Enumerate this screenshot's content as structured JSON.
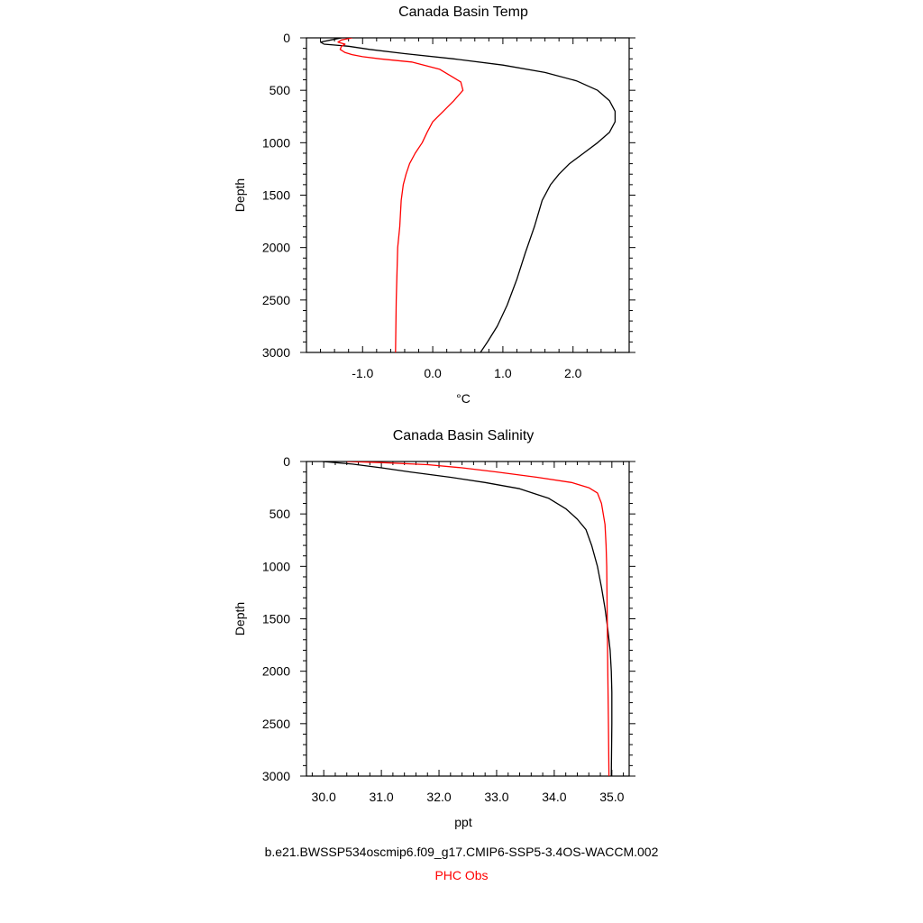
{
  "colors": {
    "model": "#000000",
    "obs": "#ff0000",
    "axis": "#000000"
  },
  "chart_data": [
    {
      "type": "line",
      "title": "Canada Basin Temp",
      "xlabel": "°C",
      "ylabel": "Depth",
      "xlim": [
        -1.8,
        2.8
      ],
      "ylim": [
        3000,
        0
      ],
      "y_inverted": true,
      "xticks": [
        -1.0,
        0.0,
        1.0,
        2.0
      ],
      "xtick_labels": [
        "-1.0",
        "0.0",
        "1.0",
        "2.0"
      ],
      "yticks": [
        0,
        500,
        1000,
        1500,
        2000,
        2500,
        3000
      ],
      "ytick_labels": [
        "0",
        "500",
        "1000",
        "1500",
        "2000",
        "2500",
        "3000"
      ],
      "series": [
        {
          "color": "#000000",
          "points": [
            [
              -1.3,
              0
            ],
            [
              -1.45,
              20
            ],
            [
              -1.6,
              40
            ],
            [
              -1.55,
              60
            ],
            [
              -1.2,
              80
            ],
            [
              -0.9,
              110
            ],
            [
              -0.4,
              150
            ],
            [
              0.3,
              200
            ],
            [
              1.0,
              260
            ],
            [
              1.6,
              330
            ],
            [
              2.05,
              410
            ],
            [
              2.35,
              500
            ],
            [
              2.52,
              600
            ],
            [
              2.6,
              700
            ],
            [
              2.6,
              800
            ],
            [
              2.52,
              900
            ],
            [
              2.35,
              1000
            ],
            [
              2.15,
              1100
            ],
            [
              1.95,
              1200
            ],
            [
              1.8,
              1300
            ],
            [
              1.68,
              1400
            ],
            [
              1.56,
              1550
            ],
            [
              1.45,
              1800
            ],
            [
              1.32,
              2050
            ],
            [
              1.2,
              2300
            ],
            [
              1.06,
              2550
            ],
            [
              0.92,
              2750
            ],
            [
              0.78,
              2900
            ],
            [
              0.68,
              3000
            ]
          ]
        },
        {
          "color": "#ff0000",
          "points": [
            [
              -1.15,
              0
            ],
            [
              -1.3,
              20
            ],
            [
              -1.35,
              40
            ],
            [
              -1.25,
              60
            ],
            [
              -1.3,
              80
            ],
            [
              -1.32,
              110
            ],
            [
              -1.25,
              140
            ],
            [
              -1.15,
              160
            ],
            [
              -1.0,
              180
            ],
            [
              -0.75,
              200
            ],
            [
              -0.3,
              230
            ],
            [
              0.1,
              300
            ],
            [
              0.3,
              380
            ],
            [
              0.4,
              420
            ],
            [
              0.43,
              500
            ],
            [
              0.3,
              600
            ],
            [
              0.15,
              700
            ],
            [
              0.0,
              800
            ],
            [
              -0.08,
              900
            ],
            [
              -0.15,
              1000
            ],
            [
              -0.25,
              1100
            ],
            [
              -0.33,
              1200
            ],
            [
              -0.38,
              1300
            ],
            [
              -0.42,
              1400
            ],
            [
              -0.45,
              1550
            ],
            [
              -0.47,
              1800
            ],
            [
              -0.5,
              2000
            ],
            [
              -0.52,
              2500
            ],
            [
              -0.53,
              3000
            ]
          ]
        }
      ]
    },
    {
      "type": "line",
      "title": "Canada Basin Salinity",
      "xlabel": "ppt",
      "ylabel": "Depth",
      "xlim": [
        29.7,
        35.3
      ],
      "ylim": [
        3000,
        0
      ],
      "y_inverted": true,
      "xticks": [
        30.0,
        31.0,
        32.0,
        33.0,
        34.0,
        35.0
      ],
      "xtick_labels": [
        "30.0",
        "31.0",
        "32.0",
        "33.0",
        "34.0",
        "35.0"
      ],
      "yticks": [
        0,
        500,
        1000,
        1500,
        2000,
        2500,
        3000
      ],
      "ytick_labels": [
        "0",
        "500",
        "1000",
        "1500",
        "2000",
        "2500",
        "3000"
      ],
      "series": [
        {
          "color": "#000000",
          "points": [
            [
              29.98,
              0
            ],
            [
              30.2,
              10
            ],
            [
              30.5,
              25
            ],
            [
              31.0,
              60
            ],
            [
              31.5,
              100
            ],
            [
              32.2,
              150
            ],
            [
              32.8,
              200
            ],
            [
              33.4,
              260
            ],
            [
              33.9,
              350
            ],
            [
              34.2,
              450
            ],
            [
              34.4,
              550
            ],
            [
              34.55,
              650
            ],
            [
              34.65,
              800
            ],
            [
              34.75,
              1000
            ],
            [
              34.82,
              1200
            ],
            [
              34.88,
              1400
            ],
            [
              34.93,
              1600
            ],
            [
              34.97,
              1800
            ],
            [
              34.99,
              2000
            ],
            [
              35.0,
              2200
            ],
            [
              35.0,
              2500
            ],
            [
              34.99,
              3000
            ]
          ]
        },
        {
          "color": "#ff0000",
          "points": [
            [
              30.4,
              0
            ],
            [
              31.0,
              10
            ],
            [
              31.8,
              30
            ],
            [
              32.4,
              60
            ],
            [
              33.0,
              100
            ],
            [
              33.7,
              150
            ],
            [
              34.3,
              200
            ],
            [
              34.6,
              250
            ],
            [
              34.75,
              300
            ],
            [
              34.82,
              400
            ],
            [
              34.88,
              600
            ],
            [
              34.9,
              800
            ],
            [
              34.91,
              1000
            ],
            [
              34.92,
              1500
            ],
            [
              34.93,
              2000
            ],
            [
              34.94,
              2500
            ],
            [
              34.95,
              3000
            ]
          ]
        }
      ]
    }
  ],
  "legend": {
    "model_label": "b.e21.BWSSP534oscmip6.f09_g17.CMIP6-SSP5-3.4OS-WACCM.002",
    "obs_label": "PHC Obs"
  }
}
